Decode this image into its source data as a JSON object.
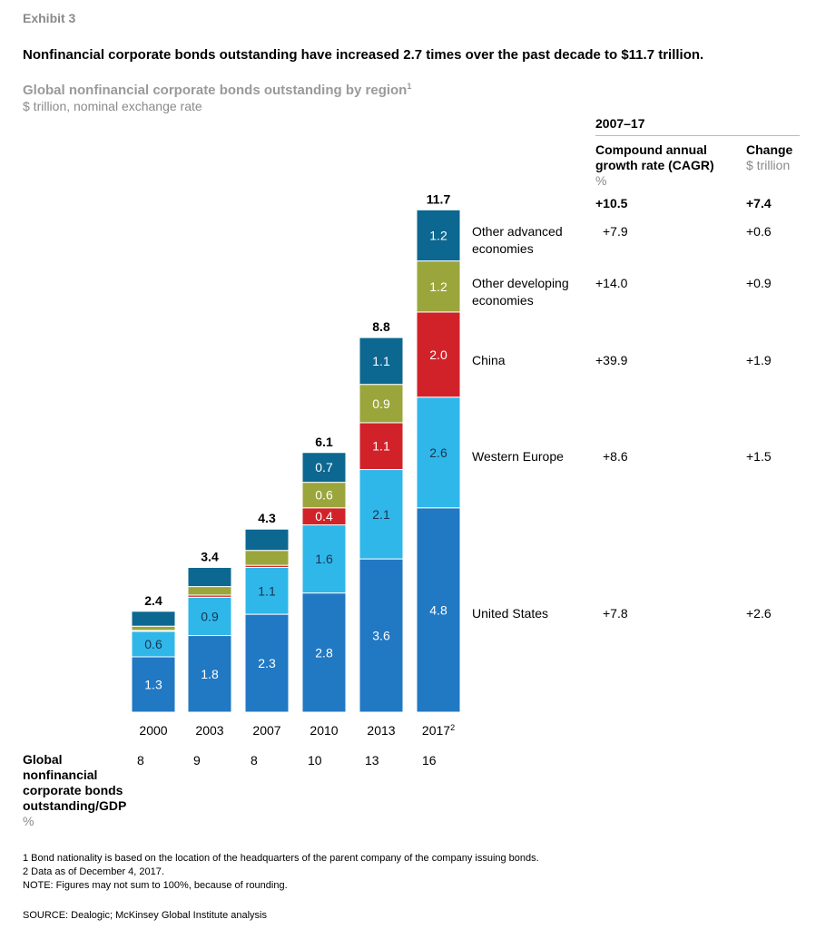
{
  "exhibit": "Exhibit 3",
  "headline": "Nonfinancial corporate bonds outstanding have increased 2.7 times over the past decade to $11.7 trillion.",
  "chart_title": "Global nonfinancial corporate bonds outstanding by region",
  "chart_title_footnote": "1",
  "chart_subtitle": "$ trillion, nominal exchange rate",
  "colors": {
    "United States": "#2178c3",
    "Western Europe": "#2fb7ea",
    "China": "#d22229",
    "Other developing economies": "#9aa63b",
    "Other advanced economies": "#0c6791"
  },
  "chart_data": {
    "type": "bar",
    "stacked": true,
    "categories": [
      "2000",
      "2003",
      "2007",
      "2010",
      "2013",
      "2017"
    ],
    "category_footnotes": {
      "2017": "2"
    },
    "ylim": [
      0,
      12
    ],
    "grid": false,
    "series": [
      {
        "name": "United States",
        "values": [
          1.3,
          1.8,
          2.3,
          2.8,
          3.6,
          4.8
        ],
        "labels": [
          "1.3",
          "1.8",
          "2.3",
          "2.8",
          "3.6",
          "4.8"
        ]
      },
      {
        "name": "Western Europe",
        "values": [
          0.6,
          0.9,
          1.1,
          1.6,
          2.1,
          2.6
        ],
        "labels": [
          "0.6",
          "0.9",
          "1.1",
          "1.6",
          "2.1",
          "2.6"
        ]
      },
      {
        "name": "China",
        "values": [
          0.02,
          0.05,
          0.05,
          0.4,
          1.1,
          2.0
        ],
        "labels": [
          "",
          "",
          "",
          "0.4",
          "1.1",
          "2.0"
        ]
      },
      {
        "name": "Other developing economies",
        "values": [
          0.1,
          0.2,
          0.35,
          0.6,
          0.9,
          1.2
        ],
        "labels": [
          "",
          "",
          "",
          "0.6",
          "0.9",
          "1.2"
        ]
      },
      {
        "name": "Other advanced economies",
        "values": [
          0.35,
          0.45,
          0.5,
          0.7,
          1.1,
          1.2
        ],
        "labels": [
          "",
          "",
          "",
          "0.7",
          "1.1",
          "1.2"
        ]
      }
    ],
    "totals": [
      "2.4",
      "3.4",
      "4.3",
      "6.1",
      "8.8",
      "11.7"
    ]
  },
  "gdp": {
    "label": "Global nonfinancial corporate bonds outstanding/GDP",
    "unit": "%",
    "values": [
      "8",
      "9",
      "8",
      "10",
      "13",
      "16"
    ]
  },
  "table": {
    "period": "2007–17",
    "cagr_header": "Compound annual growth rate (CAGR)",
    "cagr_unit": "%",
    "change_header": "Change",
    "change_unit": "$ trillion",
    "total_cagr": "+10.5",
    "total_change": "+7.4",
    "rows": [
      {
        "label": "Other advanced economies",
        "cagr": "+7.9",
        "change": "+0.6"
      },
      {
        "label": "Other developing economies",
        "cagr": "+14.0",
        "change": "+0.9"
      },
      {
        "label": "China",
        "cagr": "+39.9",
        "change": "+1.9"
      },
      {
        "label": "Western Europe",
        "cagr": "+8.6",
        "change": "+1.5"
      },
      {
        "label": "United States",
        "cagr": "+7.8",
        "change": "+2.6"
      }
    ]
  },
  "footnotes": [
    "1  Bond nationality is based on the location of the headquarters of the parent company of the company issuing bonds.",
    "2  Data as of December 4, 2017.",
    "NOTE: Figures may not sum to 100%, because of rounding."
  ],
  "source": "SOURCE:  Dealogic; McKinsey Global Institute analysis"
}
